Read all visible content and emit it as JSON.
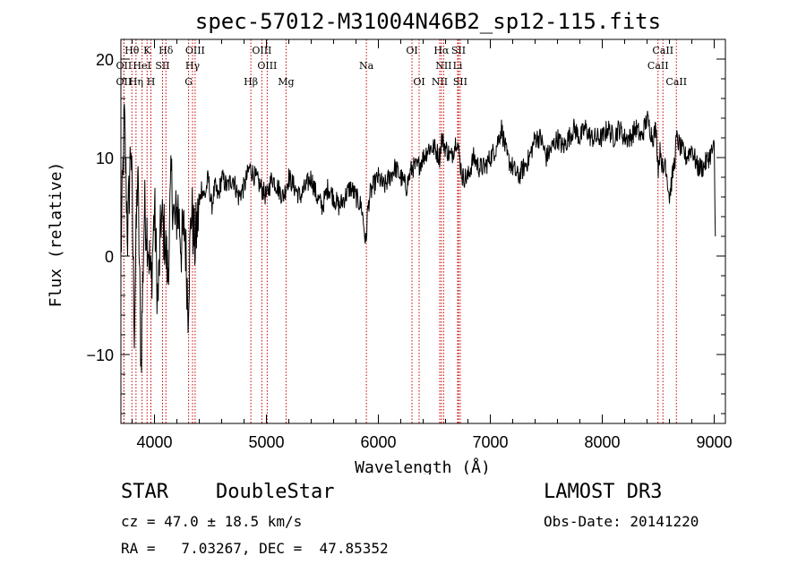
{
  "chart_data": {
    "type": "line",
    "title": "spec-57012-M31004N46B2_sp12-115.fits",
    "xlabel": "Wavelength (Å)",
    "ylabel": "Flux (relative)",
    "xlim": [
      3700,
      9100
    ],
    "ylim": [
      -17,
      22
    ],
    "x_ticks": [
      4000,
      5000,
      6000,
      7000,
      8000,
      9000
    ],
    "y_ticks": [
      -10,
      0,
      10,
      20
    ],
    "y_tick_labels": [
      "−10",
      "0",
      "10",
      "20"
    ],
    "series": [
      {
        "name": "spectrum",
        "x": [
          3700,
          3730,
          3760,
          3790,
          3820,
          3850,
          3880,
          3910,
          3940,
          3970,
          4000,
          4030,
          4060,
          4090,
          4120,
          4150,
          4180,
          4210,
          4240,
          4270,
          4300,
          4330,
          4360,
          4390,
          4420,
          4450,
          4480,
          4510,
          4540,
          4570,
          4600,
          4650,
          4700,
          4750,
          4800,
          4850,
          4900,
          4950,
          5000,
          5050,
          5100,
          5150,
          5200,
          5250,
          5300,
          5350,
          5400,
          5450,
          5500,
          5550,
          5600,
          5650,
          5700,
          5750,
          5800,
          5850,
          5890,
          5900,
          5920,
          5950,
          6000,
          6050,
          6100,
          6150,
          6200,
          6250,
          6300,
          6350,
          6400,
          6450,
          6500,
          6550,
          6563,
          6600,
          6650,
          6700,
          6750,
          6800,
          6850,
          6900,
          6950,
          7000,
          7050,
          7100,
          7150,
          7200,
          7250,
          7300,
          7350,
          7400,
          7450,
          7500,
          7550,
          7600,
          7650,
          7700,
          7750,
          7800,
          7850,
          7900,
          7950,
          8000,
          8050,
          8100,
          8150,
          8200,
          8250,
          8300,
          8350,
          8400,
          8450,
          8480,
          8500,
          8520,
          8545,
          8560,
          8600,
          8650,
          8662,
          8700,
          8750,
          8800,
          8850,
          8900,
          8950,
          9000,
          9010
        ],
        "y": [
          0,
          14,
          2,
          12,
          -7,
          9,
          -11,
          5,
          2,
          -3,
          5,
          -5,
          4,
          2,
          -2,
          8,
          3,
          5,
          1,
          3,
          -5,
          5,
          1,
          4,
          7,
          6,
          8,
          5,
          7,
          6,
          8,
          7,
          8,
          6,
          7,
          9,
          8,
          7,
          6,
          8,
          7,
          6,
          8,
          7,
          6,
          7,
          8,
          6,
          5,
          7,
          6,
          5,
          6,
          7,
          6,
          5,
          1,
          4,
          6,
          7,
          8,
          7,
          8,
          9,
          8,
          7,
          9,
          9,
          10,
          11,
          11,
          10,
          12,
          11,
          10,
          12,
          8,
          8,
          10,
          9,
          9,
          10,
          11,
          13,
          10,
          9,
          8,
          9,
          10,
          12,
          12,
          10,
          11,
          12,
          11,
          12,
          13,
          12,
          13,
          12,
          12,
          12,
          13,
          12,
          13,
          12,
          12,
          13,
          12,
          14,
          12,
          13,
          9,
          11,
          8,
          10,
          6,
          10,
          12,
          11,
          10,
          11,
          9,
          9,
          10,
          11,
          2
        ]
      }
    ],
    "emission_lines": [
      {
        "name": "Hθ",
        "wavelength": 3798,
        "row": 0
      },
      {
        "name": "K",
        "wavelength": 3934,
        "row": 0
      },
      {
        "name": "Hδ",
        "wavelength": 4102,
        "row": 0
      },
      {
        "name": "OIII",
        "wavelength": 4363,
        "row": 0
      },
      {
        "name": "OIII",
        "wavelength": 4959,
        "row": 0
      },
      {
        "name": "OI",
        "wavelength": 6300,
        "row": 0
      },
      {
        "name": "Hα",
        "wavelength": 6563,
        "row": 0
      },
      {
        "name": "SII",
        "wavelength": 6716,
        "row": 0
      },
      {
        "name": "CaII",
        "wavelength": 8542,
        "row": 0
      },
      {
        "name": "OII",
        "wavelength": 3727,
        "row": 1
      },
      {
        "name": "HeI",
        "wavelength": 3889,
        "row": 1
      },
      {
        "name": "SII",
        "wavelength": 4072,
        "row": 1
      },
      {
        "name": "Hγ",
        "wavelength": 4340,
        "row": 1
      },
      {
        "name": "OIII",
        "wavelength": 5007,
        "row": 1
      },
      {
        "name": "Na",
        "wavelength": 5893,
        "row": 1
      },
      {
        "name": "NII",
        "wavelength": 6583,
        "row": 1
      },
      {
        "name": "Li",
        "wavelength": 6708,
        "row": 1
      },
      {
        "name": "CaII",
        "wavelength": 8498,
        "row": 1
      },
      {
        "name": "OII",
        "wavelength": 3727,
        "row": 2
      },
      {
        "name": "Hη",
        "wavelength": 3835,
        "row": 2
      },
      {
        "name": "H",
        "wavelength": 3968,
        "row": 2
      },
      {
        "name": "G",
        "wavelength": 4305,
        "row": 2
      },
      {
        "name": "Hβ",
        "wavelength": 4861,
        "row": 2
      },
      {
        "name": "Mg",
        "wavelength": 5175,
        "row": 2
      },
      {
        "name": "OI",
        "wavelength": 6364,
        "row": 2
      },
      {
        "name": "NII",
        "wavelength": 6548,
        "row": 2
      },
      {
        "name": "SII",
        "wavelength": 6731,
        "row": 2
      },
      {
        "name": "CaII",
        "wavelength": 8662,
        "row": 2
      }
    ]
  },
  "info": {
    "class": "STAR",
    "subclass": "DoubleStar",
    "survey": "LAMOST DR3",
    "redshift": "cz = 47.0 ± 18.5 km/s",
    "obs_date": "Obs-Date: 20141220",
    "coords": "RA =   7.03267, DEC =  47.85352"
  },
  "colors": {
    "axis": "#000000",
    "spectrum": "#000000",
    "emission_line": "#cc0000"
  }
}
